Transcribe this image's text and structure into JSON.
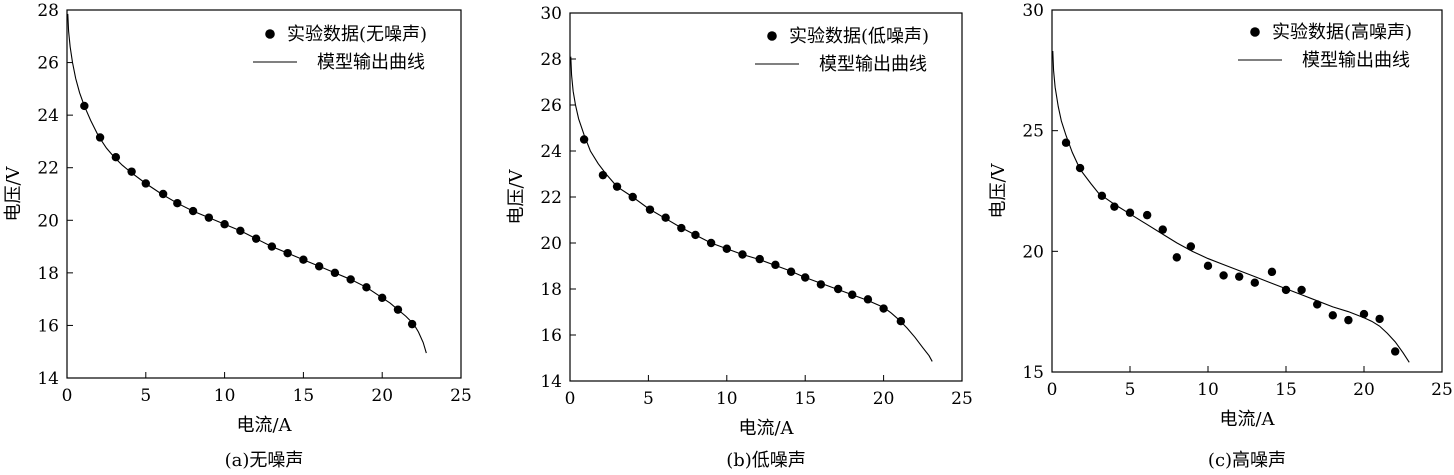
{
  "chart_data": [
    {
      "type": "scatter",
      "caption": "(a)无噪声",
      "xlabel": "电流/A",
      "ylabel": "电压/V",
      "xlim": [
        0,
        25
      ],
      "ylim": [
        14,
        28
      ],
      "xticks": [
        0,
        5,
        10,
        15,
        20,
        25
      ],
      "yticks": [
        14,
        16,
        18,
        20,
        22,
        24,
        26,
        28
      ],
      "legend_position": "top-right",
      "grid": false,
      "series": [
        {
          "name": "实验数据(无噪声)",
          "kind": "points",
          "x": [
            1.1,
            2.1,
            3.1,
            4.1,
            5.0,
            6.1,
            7.0,
            8.0,
            9.0,
            10.0,
            11.0,
            12.0,
            13.0,
            14.0,
            15.0,
            16.0,
            17.0,
            18.0,
            19.0,
            20.0,
            21.0,
            21.9
          ],
          "y": [
            24.35,
            23.15,
            22.4,
            21.85,
            21.4,
            21.0,
            20.65,
            20.35,
            20.1,
            19.85,
            19.6,
            19.3,
            19.0,
            18.75,
            18.5,
            18.25,
            18.0,
            17.75,
            17.45,
            17.05,
            16.6,
            16.05
          ]
        },
        {
          "name": "模型输出曲线",
          "kind": "line",
          "x": [
            0.05,
            0.1,
            0.2,
            0.35,
            0.55,
            0.8,
            1.1,
            1.5,
            2.0,
            2.5,
            3.0,
            3.5,
            4.0,
            5.0,
            6.0,
            7.0,
            8.0,
            9.0,
            10.0,
            11.0,
            12.0,
            13.0,
            14.0,
            15.0,
            16.0,
            17.0,
            18.0,
            19.0,
            20.0,
            20.5,
            21.0,
            21.5,
            22.0,
            22.3,
            22.6,
            22.8
          ],
          "y": [
            27.85,
            27.2,
            26.6,
            26.0,
            25.4,
            24.85,
            24.35,
            23.8,
            23.2,
            22.75,
            22.4,
            22.1,
            21.85,
            21.4,
            21.0,
            20.65,
            20.35,
            20.1,
            19.85,
            19.6,
            19.3,
            19.0,
            18.75,
            18.5,
            18.25,
            18.0,
            17.75,
            17.45,
            17.05,
            16.85,
            16.6,
            16.35,
            16.05,
            15.75,
            15.35,
            14.95
          ]
        }
      ]
    },
    {
      "type": "scatter",
      "caption": "(b)低噪声",
      "xlabel": "电流/A",
      "ylabel": "电压/V",
      "xlim": [
        0,
        25
      ],
      "ylim": [
        14,
        30
      ],
      "xticks": [
        0,
        5,
        10,
        15,
        20,
        25
      ],
      "yticks": [
        14,
        16,
        18,
        20,
        22,
        24,
        26,
        28,
        30
      ],
      "legend_position": "top-right",
      "grid": false,
      "series": [
        {
          "name": "实验数据(低噪声)",
          "kind": "points",
          "x": [
            0.9,
            2.1,
            3.0,
            4.0,
            5.1,
            6.1,
            7.1,
            8.0,
            9.0,
            10.0,
            11.0,
            12.1,
            13.1,
            14.1,
            15.0,
            16.0,
            17.1,
            18.0,
            19.0,
            20.0,
            21.1
          ],
          "y": [
            24.5,
            22.95,
            22.45,
            22.0,
            21.45,
            21.1,
            20.65,
            20.35,
            20.0,
            19.75,
            19.5,
            19.3,
            19.05,
            18.75,
            18.5,
            18.2,
            18.0,
            17.75,
            17.55,
            17.15,
            16.6
          ]
        },
        {
          "name": "模型输出曲线",
          "kind": "line",
          "x": [
            0.05,
            0.1,
            0.2,
            0.35,
            0.55,
            0.9,
            1.3,
            1.8,
            2.3,
            3.0,
            4.0,
            5.0,
            6.0,
            7.0,
            8.0,
            9.0,
            10.0,
            11.0,
            12.0,
            13.0,
            14.0,
            15.0,
            16.0,
            17.0,
            18.0,
            19.0,
            20.0,
            20.5,
            21.0,
            21.5,
            22.0,
            22.5,
            22.9,
            23.1
          ],
          "y": [
            28.1,
            27.3,
            26.6,
            26.0,
            25.4,
            24.7,
            24.0,
            23.45,
            23.0,
            22.45,
            22.0,
            21.5,
            21.1,
            20.7,
            20.35,
            20.0,
            19.75,
            19.5,
            19.3,
            19.05,
            18.8,
            18.5,
            18.25,
            18.0,
            17.75,
            17.5,
            17.2,
            16.95,
            16.65,
            16.3,
            15.9,
            15.45,
            15.1,
            14.85
          ]
        }
      ]
    },
    {
      "type": "scatter",
      "caption": "(c)高噪声",
      "xlabel": "电流/A",
      "ylabel": "电压/V",
      "xlim": [
        0,
        25
      ],
      "ylim": [
        15,
        30
      ],
      "xticks": [
        0,
        5,
        10,
        15,
        20,
        25
      ],
      "yticks": [
        15,
        20,
        25,
        30
      ],
      "legend_position": "top-right",
      "grid": false,
      "series": [
        {
          "name": "实验数据(高噪声)",
          "kind": "points",
          "x": [
            0.9,
            1.8,
            3.2,
            4.0,
            5.0,
            6.1,
            7.1,
            8.0,
            8.9,
            10.0,
            11.0,
            12.0,
            13.0,
            14.1,
            15.0,
            16.0,
            17.0,
            18.0,
            19.0,
            20.0,
            21.0,
            22.0
          ],
          "y": [
            24.5,
            23.45,
            22.3,
            21.85,
            21.6,
            21.5,
            20.9,
            19.75,
            20.2,
            19.4,
            19.0,
            18.95,
            18.7,
            19.15,
            18.4,
            18.4,
            17.8,
            17.35,
            17.15,
            17.4,
            17.2,
            15.85
          ]
        },
        {
          "name": "模型输出曲线",
          "kind": "line",
          "x": [
            0.05,
            0.1,
            0.2,
            0.4,
            0.6,
            0.9,
            1.3,
            1.8,
            2.5,
            3.0,
            4.0,
            5.0,
            6.0,
            7.0,
            8.0,
            9.0,
            10.0,
            11.0,
            12.0,
            13.0,
            14.0,
            15.0,
            16.0,
            17.0,
            18.0,
            19.0,
            20.0,
            20.5,
            21.0,
            21.5,
            22.0,
            22.5,
            22.9
          ],
          "y": [
            28.3,
            27.5,
            26.8,
            26.0,
            25.4,
            24.8,
            24.1,
            23.4,
            22.8,
            22.4,
            21.95,
            21.55,
            21.15,
            20.75,
            20.35,
            20.0,
            19.7,
            19.45,
            19.2,
            18.95,
            18.7,
            18.45,
            18.2,
            17.95,
            17.7,
            17.5,
            17.25,
            17.1,
            16.9,
            16.6,
            16.25,
            15.8,
            15.4
          ]
        }
      ]
    }
  ]
}
